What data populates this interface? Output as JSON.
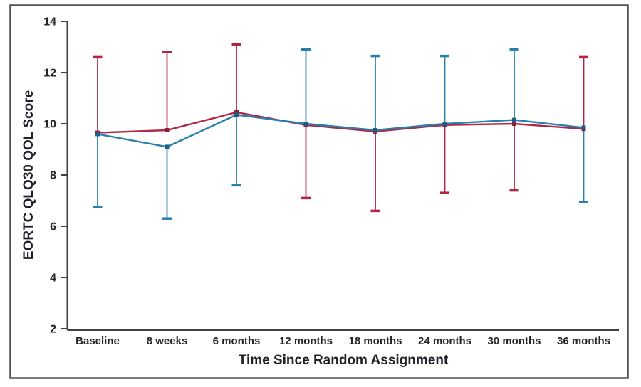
{
  "chart_data": {
    "type": "line",
    "title": "",
    "xlabel": "Time Since Random Assignment",
    "ylabel": "EORTC QLQ30 QOL Score",
    "categories": [
      "Baseline",
      "8 weeks",
      "6 months",
      "12 months",
      "18 months",
      "24 months",
      "30 months",
      "36 months"
    ],
    "ylim": [
      2,
      14
    ],
    "yticks": [
      2,
      4,
      6,
      8,
      10,
      12,
      14
    ],
    "grid": false,
    "legend": "none",
    "error_bars": "one-sided whiskers with caps; direction alternates between arms at each time point",
    "series": [
      {
        "name": "red-series",
        "color": "#b02746",
        "marker_color": "#8e1f3a",
        "values": [
          9.65,
          9.75,
          10.45,
          9.95,
          9.7,
          9.95,
          10.0,
          9.8
        ],
        "error_dir": [
          "up",
          "up",
          "up",
          "down",
          "down",
          "down",
          "down",
          "up"
        ],
        "error_end": [
          12.6,
          12.8,
          13.1,
          7.1,
          6.6,
          7.3,
          7.4,
          12.6
        ]
      },
      {
        "name": "blue-series",
        "color": "#2980ad",
        "marker_color": "#1d5f85",
        "values": [
          9.6,
          9.1,
          10.35,
          10.0,
          9.75,
          10.0,
          10.15,
          9.85
        ],
        "error_dir": [
          "down",
          "down",
          "down",
          "up",
          "up",
          "up",
          "up",
          "down"
        ],
        "error_end": [
          6.75,
          6.3,
          7.6,
          12.9,
          12.65,
          12.65,
          12.9,
          6.95
        ]
      }
    ]
  },
  "style_colors": {
    "axis": "#3e4247",
    "frame": "#4e5257",
    "text": "#23262b",
    "background": "#ffffff"
  }
}
